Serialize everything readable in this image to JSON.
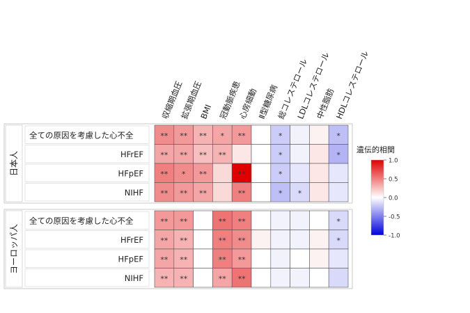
{
  "chart_data": {
    "type": "heatmap",
    "columns": [
      "収縮期血圧",
      "拡張期血圧",
      "BMI",
      "冠動脈疾患",
      "心房細動",
      "Ⅱ型糖尿病",
      "総コレステロール",
      "LDLコレステロール",
      "中性脂肪",
      "HDLコレステロール"
    ],
    "panels": [
      {
        "name": "日本人",
        "rows": [
          "全ての原因を考慮した心不全",
          "HFrEF",
          "HFpEF",
          "NIHF"
        ],
        "values": [
          [
            0.45,
            0.4,
            0.3,
            0.35,
            0.4,
            0.0,
            -0.2,
            -0.05,
            0.05,
            -0.25
          ],
          [
            0.35,
            0.35,
            0.25,
            0.3,
            0.1,
            0.0,
            -0.2,
            -0.05,
            0.1,
            -0.3
          ],
          [
            0.5,
            0.45,
            0.4,
            0.15,
            1.0,
            0.0,
            -0.2,
            -0.1,
            0.1,
            -0.1
          ],
          [
            0.45,
            0.4,
            0.35,
            0.15,
            0.5,
            0.0,
            -0.25,
            -0.15,
            0.1,
            -0.1
          ]
        ],
        "stars": [
          [
            "**",
            "**",
            "**",
            "*",
            "**",
            "",
            "*",
            "",
            "",
            "*"
          ],
          [
            "**",
            "**",
            "**",
            "**",
            "",
            "",
            "*",
            "",
            "",
            "*"
          ],
          [
            "**",
            "*",
            "**",
            "",
            "**",
            "",
            "*",
            "",
            "",
            ""
          ],
          [
            "**",
            "**",
            "**",
            "",
            "**",
            "",
            "*",
            "*",
            "",
            ""
          ]
        ]
      },
      {
        "name": "ヨーロッパ人",
        "rows": [
          "全ての原因を考慮した心不全",
          "HFrEF",
          "HFpEF",
          "NIHF"
        ],
        "values": [
          [
            0.4,
            0.4,
            0.0,
            0.55,
            0.5,
            0.0,
            -0.05,
            -0.05,
            0.0,
            -0.15
          ],
          [
            0.35,
            0.3,
            0.0,
            0.5,
            0.45,
            0.05,
            -0.05,
            -0.05,
            0.05,
            -0.15
          ],
          [
            0.35,
            0.3,
            0.0,
            0.5,
            0.4,
            0.0,
            -0.05,
            0.0,
            0.05,
            -0.1
          ],
          [
            0.3,
            0.3,
            0.0,
            0.35,
            0.55,
            0.0,
            -0.05,
            -0.05,
            0.0,
            -0.15
          ]
        ],
        "stars": [
          [
            "**",
            "**",
            "",
            "**",
            "**",
            "",
            "",
            "",
            "",
            "*"
          ],
          [
            "**",
            "**",
            "",
            "**",
            "**",
            "",
            "",
            "",
            "",
            "*"
          ],
          [
            "**",
            "**",
            "",
            "**",
            "**",
            "",
            "",
            "",
            "",
            ""
          ],
          [
            "**",
            "**",
            "",
            "**",
            "**",
            "",
            "",
            "",
            "",
            ""
          ]
        ]
      }
    ],
    "legend": {
      "title": "遺伝的相関",
      "ticks": [
        "1.0",
        "0.5",
        "0.0",
        "-0.5",
        "-1.0"
      ],
      "tick_values": [
        1.0,
        0.5,
        0.0,
        -0.5,
        -1.0
      ],
      "range": [
        -1.0,
        1.0
      ],
      "colors": {
        "high": "#e00000",
        "mid": "#ffffff",
        "low": "#0000dd"
      }
    }
  }
}
